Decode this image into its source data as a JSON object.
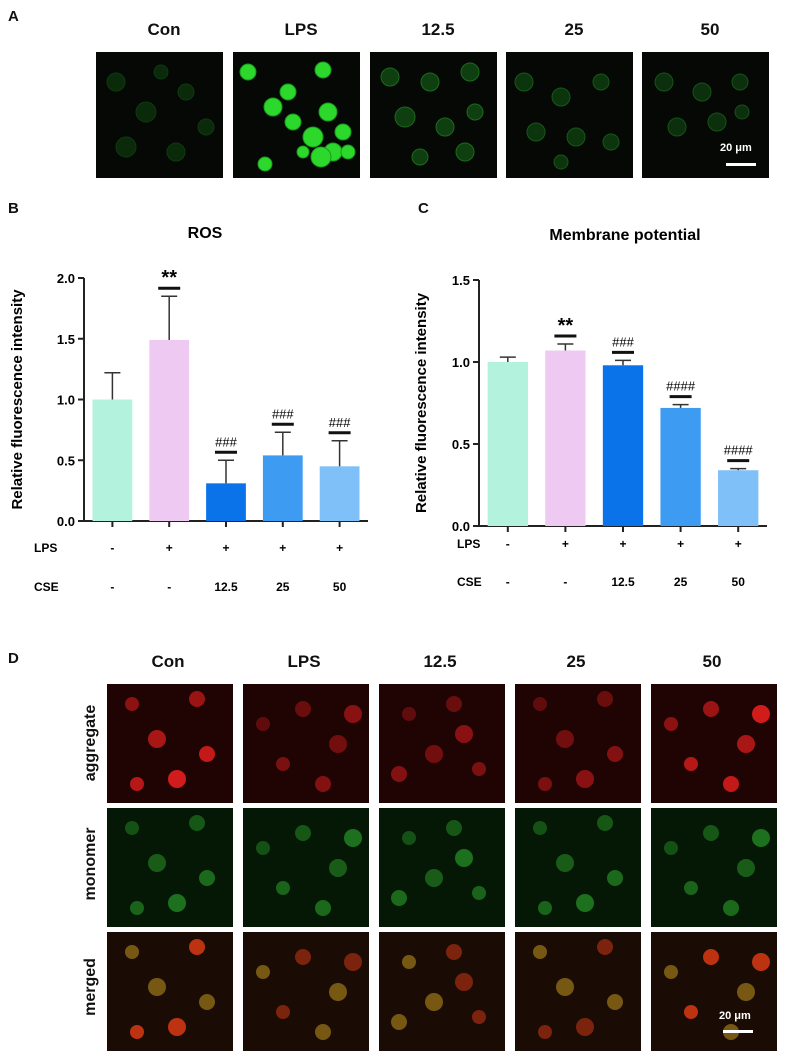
{
  "panels": {
    "a": {
      "letter": "A",
      "columns": [
        "Con",
        "LPS",
        "12.5",
        "25",
        "50"
      ],
      "scale_bar": "20 μm"
    },
    "b": {
      "letter": "B"
    },
    "c": {
      "letter": "C"
    },
    "d": {
      "letter": "D",
      "columns": [
        "Con",
        "LPS",
        "12.5",
        "25",
        "50"
      ],
      "rows": [
        "aggregate",
        "monomer",
        "merged"
      ],
      "scale_bar": "20 μm"
    }
  },
  "colors": {
    "con": "#b3f2dd",
    "lps": "#eec9f1",
    "cse_12_5": "#0a73ea",
    "cse_25": "#3d9bf2",
    "cse_50": "#80c0f8"
  },
  "chart_data": [
    {
      "type": "bar",
      "title": "ROS",
      "ylabel": "Relative fluorescence intensity",
      "ylim": [
        0,
        2.0
      ],
      "yticks": [
        "0.0",
        "0.5",
        "1.0",
        "1.5",
        "2.0"
      ],
      "categories": [
        "Con",
        "LPS",
        "12.5",
        "25",
        "50"
      ],
      "values": [
        1.0,
        1.49,
        0.31,
        0.54,
        0.45
      ],
      "errors": [
        0.22,
        0.36,
        0.19,
        0.19,
        0.21
      ],
      "annotations": [
        "",
        "**",
        "###",
        "###",
        "###"
      ],
      "row_labels": {
        "LPS": "LPS",
        "CSE": "CSE"
      },
      "lps_row": [
        "-",
        "+",
        "+",
        "+",
        "+"
      ],
      "cse_row": [
        "-",
        "-",
        "12.5",
        "25",
        "50"
      ]
    },
    {
      "type": "bar",
      "title": "Membrane potential",
      "ylabel": "Relative fluorescence intensity",
      "ylim": [
        0,
        1.5
      ],
      "yticks": [
        "0.0",
        "0.5",
        "1.0",
        "1.5"
      ],
      "categories": [
        "Con",
        "LPS",
        "12.5",
        "25",
        "50"
      ],
      "values": [
        1.0,
        1.07,
        0.98,
        0.72,
        0.34
      ],
      "errors": [
        0.03,
        0.04,
        0.03,
        0.02,
        0.01
      ],
      "annotations": [
        "",
        "**",
        "###",
        "####",
        "####"
      ],
      "row_labels": {
        "LPS": "LPS",
        "CSE": "CSE"
      },
      "lps_row": [
        "-",
        "+",
        "+",
        "+",
        "+"
      ],
      "cse_row": [
        "-",
        "-",
        "12.5",
        "25",
        "50"
      ]
    }
  ]
}
